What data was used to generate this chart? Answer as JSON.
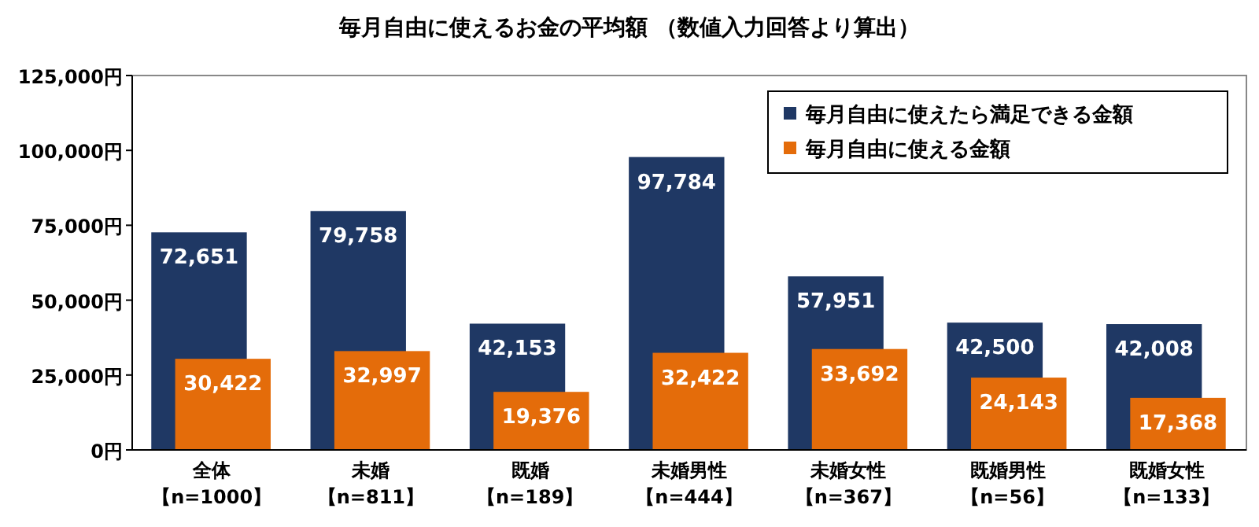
{
  "chart_data": {
    "type": "bar",
    "title": "毎月自由に使えるお金の平均額 （数値入力回答より算出）",
    "categories": [
      "全体【n=1000】",
      "未婚【n=811】",
      "既婚【n=189】",
      "未婚男性【n=444】",
      "未婚女性【n=367】",
      "既婚男性【n=56】",
      "既婚女性【n=133】"
    ],
    "series": [
      {
        "name": "毎月自由に使えたら満足できる金額",
        "color": "#1f3864",
        "values": [
          72651,
          79758,
          42153,
          97784,
          57951,
          42500,
          42008
        ],
        "value_labels": [
          "72,651",
          "79,758",
          "42,153",
          "97,784",
          "57,951",
          "42,500",
          "42,008"
        ]
      },
      {
        "name": "毎月自由に使える金額",
        "color": "#e46c0a",
        "values": [
          30422,
          32997,
          19376,
          32422,
          33692,
          24143,
          17368
        ],
        "value_labels": [
          "30,422",
          "32,997",
          "19,376",
          "32,422",
          "33,692",
          "24,143",
          "17,368"
        ]
      }
    ],
    "ylim": [
      0,
      125000
    ],
    "yticks": [
      {
        "value": 0,
        "label": "0円"
      },
      {
        "value": 25000,
        "label": "25,000円"
      },
      {
        "value": 50000,
        "label": "50,000円"
      },
      {
        "value": 75000,
        "label": "75,000円"
      },
      {
        "value": 100000,
        "label": "100,000円"
      },
      {
        "value": 125000,
        "label": "125,000円"
      }
    ],
    "grid": false,
    "legend": "top right"
  }
}
